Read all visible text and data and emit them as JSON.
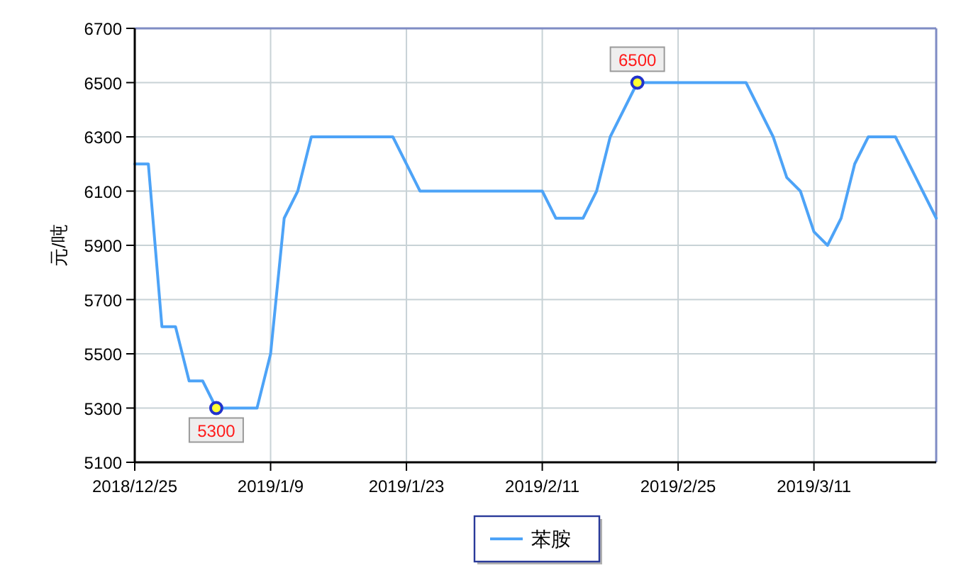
{
  "chart_data": {
    "type": "line",
    "ylabel": "元/吨",
    "categories": [
      "2018/12/25",
      null,
      null,
      null,
      null,
      null,
      null,
      null,
      null,
      null,
      "2019/1/9",
      null,
      null,
      null,
      null,
      null,
      null,
      null,
      null,
      null,
      "2019/1/23",
      null,
      null,
      null,
      null,
      null,
      null,
      null,
      null,
      null,
      "2019/2/11",
      null,
      null,
      null,
      null,
      null,
      null,
      null,
      null,
      null,
      "2019/2/25",
      null,
      null,
      null,
      null,
      null,
      null,
      null,
      null,
      null,
      "2019/3/11",
      null,
      null,
      null,
      null,
      null,
      null,
      null,
      null,
      null
    ],
    "series": [
      {
        "name": "苯胺",
        "color": "#4da3f7",
        "values": [
          6200,
          6200,
          5600,
          5600,
          5400,
          5400,
          5300,
          5300,
          5300,
          5300,
          5500,
          6000,
          6100,
          6300,
          6300,
          6300,
          6300,
          6300,
          6300,
          6300,
          6200,
          6100,
          6100,
          6100,
          6100,
          6100,
          6100,
          6100,
          6100,
          6100,
          6100,
          6000,
          6000,
          6000,
          6100,
          6300,
          6400,
          6500,
          6500,
          6500,
          6500,
          6500,
          6500,
          6500,
          6500,
          6500,
          6400,
          6300,
          6150,
          6100,
          5950,
          5900,
          6000,
          6200,
          6300,
          6300,
          6300,
          6200,
          6100,
          6000
        ]
      },
      {
        "type": "scatter",
        "color": "#2233cc",
        "marker": "circle",
        "values": [
          null,
          null,
          null,
          null,
          null,
          null,
          5300,
          null,
          null,
          null,
          null,
          null,
          null,
          null,
          null,
          null,
          null,
          null,
          null,
          null,
          null,
          null,
          null,
          null,
          null,
          null,
          null,
          null,
          null,
          null,
          null,
          null,
          null,
          null,
          null,
          null,
          null,
          6500,
          null,
          null,
          null,
          null,
          null,
          null,
          null,
          null,
          null,
          null,
          null,
          null,
          null,
          null,
          null,
          null,
          null,
          null,
          null,
          null,
          null,
          null
        ],
        "value_labels": [
          null,
          null,
          null,
          null,
          null,
          null,
          "5300",
          null,
          null,
          null,
          null,
          null,
          null,
          null,
          null,
          null,
          null,
          null,
          null,
          null,
          null,
          null,
          null,
          null,
          null,
          null,
          null,
          null,
          null,
          null,
          null,
          null,
          null,
          null,
          null,
          null,
          null,
          "6500",
          null,
          null,
          null,
          null,
          null,
          null,
          null,
          null,
          null,
          null,
          null,
          null,
          null,
          null,
          null,
          null,
          null,
          null,
          null,
          null,
          null,
          null
        ]
      }
    ],
    "ylim": [
      5100,
      6700
    ],
    "yticks": [
      5100,
      5300,
      5500,
      5700,
      5900,
      6100,
      6300,
      6500,
      6700
    ],
    "grid": true,
    "legend": "bottom"
  }
}
